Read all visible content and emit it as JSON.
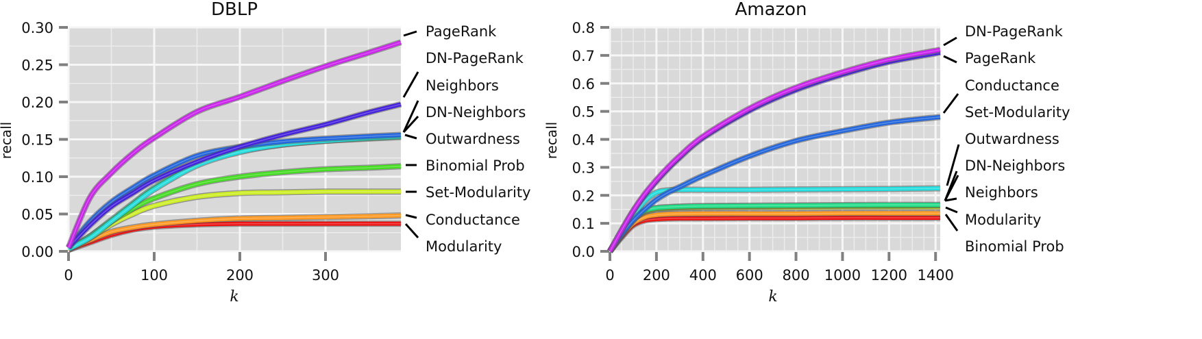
{
  "chart_data": [
    {
      "type": "line",
      "title": "DBLP",
      "xlabel": "k",
      "ylabel": "recall",
      "xlim": [
        0,
        388
      ],
      "ylim": [
        0,
        0.3
      ],
      "xticks": [
        0,
        100,
        200,
        300
      ],
      "xtick_labels": [
        "0",
        "100",
        "200",
        "300"
      ],
      "yticks": [
        0.0,
        0.05,
        0.1,
        0.15,
        0.2,
        0.25,
        0.3
      ],
      "ytick_labels": [
        "0.00",
        "0.05",
        "0.10",
        "0.15",
        "0.20",
        "0.25",
        "0.30"
      ],
      "grid": true,
      "legend_position": "right (direct labels with leader lines)",
      "x": [
        0,
        25,
        50,
        75,
        100,
        150,
        200,
        250,
        300,
        350,
        388
      ],
      "series": [
        {
          "name": "PageRank",
          "color": "#cc22ee",
          "values": [
            0.005,
            0.072,
            0.105,
            0.131,
            0.152,
            0.187,
            0.207,
            0.228,
            0.248,
            0.266,
            0.28
          ]
        },
        {
          "name": "DN-PageRank",
          "color": "#4422dd",
          "values": [
            0.005,
            0.035,
            0.06,
            0.078,
            0.095,
            0.12,
            0.14,
            0.156,
            0.17,
            0.186,
            0.197
          ]
        },
        {
          "name": "Neighbors",
          "color": "#2266dd",
          "values": [
            0.005,
            0.04,
            0.066,
            0.085,
            0.102,
            0.128,
            0.14,
            0.147,
            0.151,
            0.154,
            0.156
          ]
        },
        {
          "name": "DN-Neighbors",
          "color": "#22dddd",
          "values": [
            0.003,
            0.018,
            0.04,
            0.062,
            0.083,
            0.115,
            0.133,
            0.143,
            0.148,
            0.152,
            0.154
          ]
        },
        {
          "name": "Outwardness",
          "color": "#22dd88",
          "values": [
            0.003,
            0.02,
            0.042,
            0.064,
            0.085,
            0.117,
            0.134,
            0.143,
            0.148,
            0.151,
            0.153
          ]
        },
        {
          "name": "Binomial Prob",
          "color": "#44dd22",
          "values": [
            0.003,
            0.02,
            0.04,
            0.057,
            0.071,
            0.09,
            0.1,
            0.106,
            0.11,
            0.112,
            0.114
          ]
        },
        {
          "name": "Set-Modularity",
          "color": "#ccee22",
          "values": [
            0.003,
            0.018,
            0.036,
            0.05,
            0.061,
            0.073,
            0.078,
            0.079,
            0.08,
            0.08,
            0.08
          ]
        },
        {
          "name": "Conductance",
          "color": "#ff9922",
          "values": [
            0.002,
            0.015,
            0.026,
            0.032,
            0.036,
            0.041,
            0.044,
            0.045,
            0.046,
            0.047,
            0.048
          ]
        },
        {
          "name": "Modularity",
          "color": "#ee1111",
          "values": [
            0.002,
            0.012,
            0.022,
            0.029,
            0.033,
            0.036,
            0.037,
            0.037,
            0.037,
            0.037,
            0.037
          ]
        }
      ],
      "labels_order": [
        "PageRank",
        "DN-PageRank",
        "Neighbors",
        "DN-Neighbors",
        "Outwardness",
        "Binomial Prob",
        "Set-Modularity",
        "Conductance",
        "Modularity"
      ]
    },
    {
      "type": "line",
      "title": "Amazon",
      "xlabel": "k",
      "ylabel": "recall",
      "xlim": [
        0,
        1420
      ],
      "ylim": [
        0,
        0.8
      ],
      "xticks": [
        0,
        200,
        400,
        600,
        800,
        1000,
        1200,
        1400
      ],
      "xtick_labels": [
        "0",
        "200",
        "400",
        "600",
        "800",
        "1000",
        "1200",
        "1400"
      ],
      "yticks": [
        0.0,
        0.1,
        0.2,
        0.3,
        0.4,
        0.5,
        0.6,
        0.7,
        0.8
      ],
      "ytick_labels": [
        "0.0",
        "0.1",
        "0.2",
        "0.3",
        "0.4",
        "0.5",
        "0.6",
        "0.7",
        "0.8"
      ],
      "grid": true,
      "legend_position": "right (direct labels with leader lines)",
      "x": [
        0,
        50,
        100,
        150,
        200,
        250,
        300,
        400,
        600,
        800,
        1000,
        1200,
        1420
      ],
      "series": [
        {
          "name": "DN-PageRank",
          "color": "#cc22ee",
          "values": [
            0.0,
            0.075,
            0.145,
            0.205,
            0.255,
            0.3,
            0.34,
            0.41,
            0.51,
            0.585,
            0.64,
            0.685,
            0.72
          ]
        },
        {
          "name": "PageRank",
          "color": "#4422dd",
          "values": [
            0.0,
            0.073,
            0.142,
            0.2,
            0.25,
            0.295,
            0.335,
            0.405,
            0.503,
            0.577,
            0.632,
            0.677,
            0.71
          ]
        },
        {
          "name": "Conductance",
          "color": "#2266dd",
          "values": [
            0.0,
            0.06,
            0.11,
            0.15,
            0.185,
            0.21,
            0.23,
            0.27,
            0.34,
            0.395,
            0.43,
            0.46,
            0.48
          ]
        },
        {
          "name": "Set-Modularity",
          "color": "#22dddd",
          "values": [
            0.0,
            0.065,
            0.125,
            0.18,
            0.21,
            0.218,
            0.22,
            0.22,
            0.22,
            0.221,
            0.222,
            0.223,
            0.225
          ]
        },
        {
          "name": "Outwardness",
          "color": "#22dd88",
          "values": [
            0.0,
            0.06,
            0.115,
            0.145,
            0.155,
            0.158,
            0.16,
            0.162,
            0.163,
            0.164,
            0.165,
            0.166,
            0.166
          ]
        },
        {
          "name": "DN-Neighbors",
          "color": "#44dd22",
          "values": [
            0.0,
            0.06,
            0.114,
            0.143,
            0.153,
            0.156,
            0.158,
            0.16,
            0.161,
            0.162,
            0.163,
            0.163,
            0.164
          ]
        },
        {
          "name": "Neighbors",
          "color": "#ccee22",
          "values": [
            0.0,
            0.058,
            0.112,
            0.14,
            0.15,
            0.153,
            0.155,
            0.156,
            0.157,
            0.157,
            0.158,
            0.158,
            0.158
          ]
        },
        {
          "name": "Modularity",
          "color": "#ff9922",
          "values": [
            0.0,
            0.055,
            0.1,
            0.122,
            0.13,
            0.133,
            0.134,
            0.135,
            0.135,
            0.135,
            0.136,
            0.136,
            0.136
          ]
        },
        {
          "name": "Binomial Prob",
          "color": "#ee1111",
          "values": [
            0.0,
            0.05,
            0.093,
            0.11,
            0.115,
            0.117,
            0.118,
            0.118,
            0.119,
            0.119,
            0.12,
            0.12,
            0.12
          ]
        }
      ],
      "labels_order": [
        "DN-PageRank",
        "PageRank",
        "Conductance",
        "Set-Modularity",
        "Outwardness",
        "DN-Neighbors",
        "Neighbors",
        "Modularity",
        "Binomial Prob"
      ]
    }
  ]
}
